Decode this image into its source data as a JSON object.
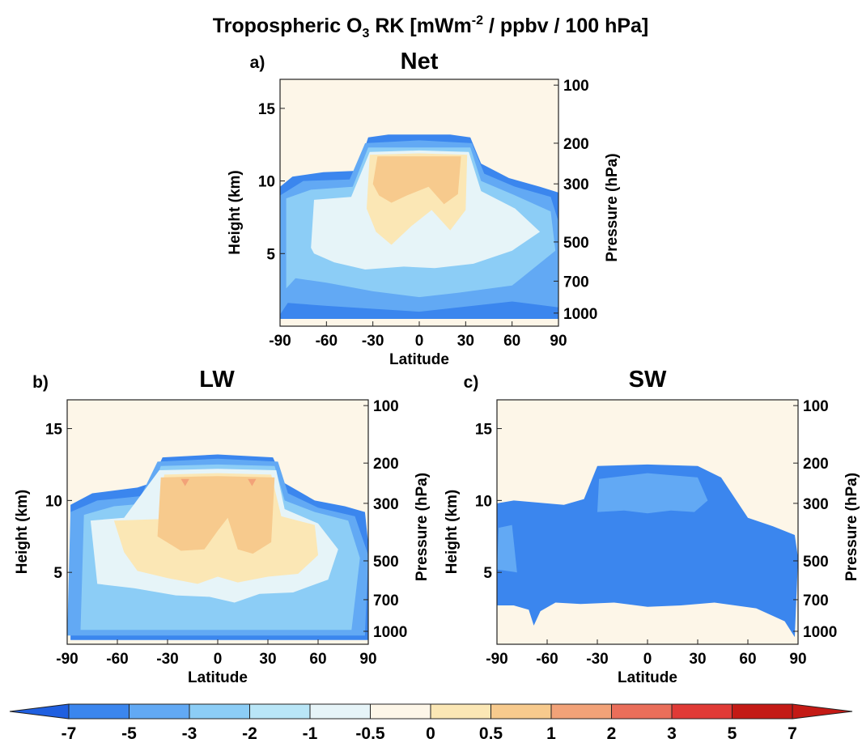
{
  "figure": {
    "title_main": "Tropospheric O",
    "title_sub": "3",
    "title_mid": " RK [mWm",
    "title_sup": "-2",
    "title_end": " / ppbv / 100 hPa]"
  },
  "colors": {
    "levels": [
      "#1f5fe0",
      "#3b86ee",
      "#62a9f4",
      "#8ccdf6",
      "#b9e6f7",
      "#e6f4f8",
      "#fdf6e8",
      "#fbe7b5",
      "#f7ca8d",
      "#f2a278",
      "#ea6e5a",
      "#e03a36",
      "#c41a15"
    ],
    "bounds": [
      -7,
      -5,
      -3,
      -2,
      -1,
      -0.5,
      0,
      0.5,
      1,
      2,
      3,
      5,
      7
    ]
  },
  "chart_data": [
    {
      "type": "heatmap",
      "panel_label": "a)",
      "title": "Net",
      "xlabel": "Latitude",
      "ylabel": "Height (km)",
      "ylabel_right": "Pressure (hPa)",
      "xlim": [
        -90,
        90
      ],
      "ylim": [
        0,
        17
      ],
      "xticks": [
        -90,
        -60,
        -30,
        0,
        30,
        60,
        90
      ],
      "yticks": [
        5,
        10,
        15
      ],
      "pressure_ticks": [
        {
          "label": "100",
          "height_km": 16.6
        },
        {
          "label": "200",
          "height_km": 12.6
        },
        {
          "label": "300",
          "height_km": 9.8
        },
        {
          "label": "500",
          "height_km": 5.8
        },
        {
          "label": "700",
          "height_km": 3.1
        },
        {
          "label": "1000",
          "height_km": 0.9
        }
      ],
      "contours": [
        {
          "level": 1,
          "points": [
            [
              -90,
              0.5
            ],
            [
              -90,
              9.6
            ],
            [
              -82,
              10.3
            ],
            [
              -62,
              10.6
            ],
            [
              -40,
              10.7
            ],
            [
              -33,
              13.0
            ],
            [
              -20,
              13.2
            ],
            [
              0,
              13.2
            ],
            [
              20,
              13.2
            ],
            [
              33,
              13.0
            ],
            [
              40,
              11.2
            ],
            [
              58,
              10.2
            ],
            [
              78,
              9.6
            ],
            [
              90,
              9.2
            ],
            [
              90,
              0.5
            ]
          ]
        },
        {
          "level": 2,
          "points": [
            [
              -90,
              0.8
            ],
            [
              -90,
              9.0
            ],
            [
              -75,
              10.0
            ],
            [
              -45,
              10.1
            ],
            [
              -35,
              12.6
            ],
            [
              0,
              12.8
            ],
            [
              34,
              12.6
            ],
            [
              42,
              10.5
            ],
            [
              62,
              9.6
            ],
            [
              85,
              8.9
            ],
            [
              90,
              7.2
            ],
            [
              90,
              1.3
            ],
            [
              60,
              1.7
            ],
            [
              0,
              1.0
            ],
            [
              -60,
              1.4
            ],
            [
              -85,
              1.6
            ]
          ]
        },
        {
          "level": 3,
          "points": [
            [
              -86,
              2.6
            ],
            [
              -86,
              8.8
            ],
            [
              -70,
              9.4
            ],
            [
              -43,
              9.6
            ],
            [
              -33,
              12.3
            ],
            [
              0,
              12.3
            ],
            [
              33,
              12.3
            ],
            [
              40,
              10.0
            ],
            [
              62,
              9.0
            ],
            [
              85,
              7.9
            ],
            [
              88,
              5.2
            ],
            [
              60,
              2.8
            ],
            [
              25,
              2.3
            ],
            [
              0,
              2.0
            ],
            [
              -30,
              2.4
            ],
            [
              -60,
              3.0
            ],
            [
              -80,
              3.3
            ]
          ]
        },
        {
          "level": 5,
          "points": [
            [
              -70,
              5.4
            ],
            [
              -68,
              8.7
            ],
            [
              -44,
              8.9
            ],
            [
              -32,
              12.0
            ],
            [
              0,
              12.1
            ],
            [
              32,
              12.0
            ],
            [
              40,
              9.3
            ],
            [
              62,
              8.1
            ],
            [
              78,
              6.5
            ],
            [
              60,
              5.2
            ],
            [
              35,
              4.3
            ],
            [
              10,
              4.0
            ],
            [
              -10,
              4.1
            ],
            [
              -35,
              3.9
            ],
            [
              -55,
              4.4
            ],
            [
              -68,
              5.0
            ]
          ]
        },
        {
          "level": 7,
          "points": [
            [
              -34,
              8.1
            ],
            [
              -32,
              11.8
            ],
            [
              0,
              11.9
            ],
            [
              31,
              11.8
            ],
            [
              30,
              8.0
            ],
            [
              20,
              6.6
            ],
            [
              8,
              8.0
            ],
            [
              -5,
              6.9
            ],
            [
              -18,
              5.6
            ],
            [
              -28,
              6.5
            ]
          ]
        },
        {
          "level": 8,
          "points": [
            [
              -30,
              9.8
            ],
            [
              -27,
              11.7
            ],
            [
              0,
              11.7
            ],
            [
              27,
              11.7
            ],
            [
              25,
              9.1
            ],
            [
              16,
              8.4
            ],
            [
              6,
              9.6
            ],
            [
              -8,
              9.0
            ],
            [
              -18,
              8.5
            ],
            [
              -26,
              9.0
            ]
          ]
        }
      ]
    },
    {
      "type": "heatmap",
      "panel_label": "b)",
      "title": "LW",
      "xlabel": "Latitude",
      "ylabel": "Height (km)",
      "ylabel_right": "Pressure (hPa)",
      "xlim": [
        -90,
        90
      ],
      "ylim": [
        0,
        17
      ],
      "xticks": [
        -90,
        -60,
        -30,
        0,
        30,
        60,
        90
      ],
      "yticks": [
        5,
        10,
        15
      ],
      "pressure_ticks": [
        {
          "label": "100",
          "height_km": 16.6
        },
        {
          "label": "200",
          "height_km": 12.6
        },
        {
          "label": "300",
          "height_km": 9.8
        },
        {
          "label": "500",
          "height_km": 5.8
        },
        {
          "label": "700",
          "height_km": 3.1
        },
        {
          "label": "1000",
          "height_km": 0.9
        }
      ],
      "contours": [
        {
          "level": 1,
          "points": [
            [
              -88,
              0.3
            ],
            [
              -88,
              9.7
            ],
            [
              -75,
              10.5
            ],
            [
              -48,
              10.9
            ],
            [
              -40,
              11.2
            ],
            [
              -33,
              13.0
            ],
            [
              0,
              13.2
            ],
            [
              33,
              13.0
            ],
            [
              40,
              11.2
            ],
            [
              58,
              10.0
            ],
            [
              76,
              9.6
            ],
            [
              88,
              9.2
            ],
            [
              90,
              7.0
            ],
            [
              90,
              0.3
            ]
          ]
        },
        {
          "level": 2,
          "points": [
            [
              -90,
              0.6
            ],
            [
              -88,
              9.2
            ],
            [
              -72,
              10.0
            ],
            [
              -46,
              10.3
            ],
            [
              -36,
              12.7
            ],
            [
              0,
              12.9
            ],
            [
              36,
              12.7
            ],
            [
              42,
              10.5
            ],
            [
              60,
              9.5
            ],
            [
              82,
              8.9
            ],
            [
              90,
              6.2
            ],
            [
              88,
              0.6
            ]
          ]
        },
        {
          "level": 3,
          "points": [
            [
              -82,
              1.0
            ],
            [
              -80,
              9.0
            ],
            [
              -62,
              9.6
            ],
            [
              -42,
              9.8
            ],
            [
              -34,
              12.4
            ],
            [
              0,
              12.5
            ],
            [
              34,
              12.4
            ],
            [
              40,
              10.0
            ],
            [
              58,
              9.2
            ],
            [
              78,
              8.6
            ],
            [
              85,
              6.0
            ],
            [
              80,
              1.0
            ]
          ]
        },
        {
          "level": 5,
          "points": [
            [
              -72,
              4.2
            ],
            [
              -76,
              8.6
            ],
            [
              -56,
              8.8
            ],
            [
              -35,
              12.1
            ],
            [
              0,
              12.2
            ],
            [
              35,
              12.1
            ],
            [
              40,
              9.4
            ],
            [
              60,
              8.4
            ],
            [
              72,
              6.6
            ],
            [
              66,
              4.5
            ],
            [
              45,
              3.6
            ],
            [
              25,
              3.5
            ],
            [
              10,
              2.9
            ],
            [
              -5,
              3.3
            ],
            [
              -25,
              3.4
            ],
            [
              -50,
              3.9
            ]
          ]
        },
        {
          "level": 7,
          "points": [
            [
              -56,
              6.4
            ],
            [
              -62,
              8.6
            ],
            [
              -35,
              8.7
            ],
            [
              -32,
              11.8
            ],
            [
              0,
              11.9
            ],
            [
              32,
              11.8
            ],
            [
              38,
              8.9
            ],
            [
              58,
              8.3
            ],
            [
              60,
              6.2
            ],
            [
              48,
              4.9
            ],
            [
              30,
              4.7
            ],
            [
              12,
              4.3
            ],
            [
              0,
              4.7
            ],
            [
              -12,
              4.2
            ],
            [
              -30,
              4.6
            ],
            [
              -48,
              5.1
            ]
          ]
        },
        {
          "level": 8,
          "points": [
            [
              -36,
              7.5
            ],
            [
              -34,
              11.6
            ],
            [
              0,
              11.7
            ],
            [
              34,
              11.6
            ],
            [
              32,
              7.1
            ],
            [
              21,
              6.3
            ],
            [
              12,
              6.6
            ],
            [
              6,
              8.8
            ],
            [
              0,
              7.9
            ],
            [
              -8,
              6.6
            ],
            [
              -22,
              6.5
            ]
          ]
        },
        {
          "level": 9,
          "points": [
            [
              -22,
              11.5
            ],
            [
              -17,
              11.5
            ],
            [
              -19.5,
              11.0
            ]
          ]
        },
        {
          "level": 9,
          "points": [
            [
              18,
              11.5
            ],
            [
              23,
              11.5
            ],
            [
              20.5,
              11.0
            ]
          ]
        }
      ]
    },
    {
      "type": "heatmap",
      "panel_label": "c)",
      "title": "SW",
      "xlabel": "Latitude",
      "ylabel": "Height (km)",
      "ylabel_right": "Pressure (hPa)",
      "xlim": [
        -90,
        90
      ],
      "ylim": [
        0,
        17
      ],
      "xticks": [
        -90,
        -60,
        -30,
        0,
        30,
        60,
        90
      ],
      "yticks": [
        5,
        10,
        15
      ],
      "pressure_ticks": [
        {
          "label": "100",
          "height_km": 16.6
        },
        {
          "label": "200",
          "height_km": 12.6
        },
        {
          "label": "300",
          "height_km": 9.8
        },
        {
          "label": "500",
          "height_km": 5.8
        },
        {
          "label": "700",
          "height_km": 3.1
        },
        {
          "label": "1000",
          "height_km": 0.9
        }
      ],
      "contours": [
        {
          "level": 1,
          "points": [
            [
              -90,
              2.7
            ],
            [
              -90,
              9.8
            ],
            [
              -80,
              10.0
            ],
            [
              -50,
              9.7
            ],
            [
              -38,
              10.1
            ],
            [
              -30,
              12.4
            ],
            [
              0,
              12.5
            ],
            [
              30,
              12.4
            ],
            [
              44,
              11.6
            ],
            [
              60,
              8.8
            ],
            [
              75,
              8.2
            ],
            [
              88,
              7.6
            ],
            [
              90,
              6.0
            ],
            [
              88,
              0.5
            ],
            [
              82,
              1.6
            ],
            [
              65,
              2.5
            ],
            [
              40,
              2.9
            ],
            [
              20,
              2.7
            ],
            [
              0,
              2.6
            ],
            [
              -20,
              2.9
            ],
            [
              -40,
              2.8
            ],
            [
              -55,
              2.9
            ],
            [
              -64,
              2.3
            ],
            [
              -68,
              1.3
            ],
            [
              -71,
              2.4
            ],
            [
              -80,
              2.7
            ]
          ]
        },
        {
          "level": 2,
          "points": [
            [
              -90,
              5.2
            ],
            [
              -89,
              8.1
            ],
            [
              -81,
              8.3
            ],
            [
              -78,
              5.0
            ]
          ]
        },
        {
          "level": 2,
          "points": [
            [
              -30,
              9.2
            ],
            [
              -29,
              11.5
            ],
            [
              0,
              11.9
            ],
            [
              30,
              11.6
            ],
            [
              36,
              10.0
            ],
            [
              28,
              9.2
            ],
            [
              14,
              9.3
            ],
            [
              0,
              9.1
            ],
            [
              -14,
              9.3
            ]
          ]
        }
      ]
    }
  ],
  "colorbar": {
    "tick_labels": [
      "-7",
      "-5",
      "-3",
      "-2",
      "-1",
      "-0.5",
      "0",
      "0.5",
      "1",
      "2",
      "3",
      "5",
      "7"
    ]
  }
}
